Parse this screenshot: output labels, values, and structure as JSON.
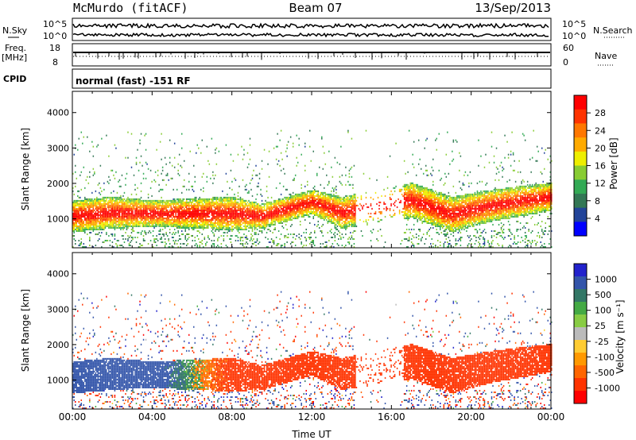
{
  "header": {
    "station": "McMurdo (fitACF)",
    "beam": "Beam 07",
    "date": "13/Sep/2013"
  },
  "side_labels": {
    "nsky": "N.Sky",
    "nsky_hi": "10^5",
    "nsky_lo": "10^0",
    "nsearch": "N.Search",
    "nsearch_hi": "10^5",
    "nsearch_lo": "10^0",
    "freq_line1": "Freq.",
    "freq_line2": "[MHz]",
    "freq_hi": "18",
    "freq_lo": "8",
    "nave": "Nave",
    "nave_hi": "60",
    "nave_lo": "0",
    "cpid": "CPID",
    "cpid_value": "normal (fast) -151 RF"
  },
  "chart_data": [
    {
      "type": "heatmap",
      "panel": "power",
      "ylabel": "Slant Range [km]",
      "ylim": [
        180,
        4600
      ],
      "yticks": [
        "1000",
        "2000",
        "3000",
        "4000"
      ],
      "xlim": [
        0,
        24
      ],
      "colorbar": {
        "label": "Power [dB]",
        "ticks": [
          "28",
          "24",
          "20",
          "16",
          "12",
          "8",
          "4"
        ],
        "colors": [
          "#ff0000",
          "#ff3300",
          "#ff7700",
          "#ffaa00",
          "#eeee00",
          "#88cc33",
          "#33aa55",
          "#337755",
          "#224499",
          "#0000ff"
        ]
      },
      "dominant_band_km": [
        {
          "t": 0.0,
          "low": 600,
          "high": 1500
        },
        {
          "t": 2.0,
          "low": 700,
          "high": 1600
        },
        {
          "t": 4.0,
          "low": 750,
          "high": 1500
        },
        {
          "t": 6.0,
          "low": 700,
          "high": 1550
        },
        {
          "t": 8.0,
          "low": 650,
          "high": 1600
        },
        {
          "t": 9.5,
          "low": 700,
          "high": 1400
        },
        {
          "t": 12.0,
          "low": 1100,
          "high": 1800
        },
        {
          "t": 13.5,
          "low": 700,
          "high": 1600
        },
        {
          "t": 17.0,
          "low": 1000,
          "high": 2000
        },
        {
          "t": 19.0,
          "low": 600,
          "high": 1600
        },
        {
          "t": 21.0,
          "low": 900,
          "high": 1800
        },
        {
          "t": 24.0,
          "low": 1200,
          "high": 2000
        }
      ]
    },
    {
      "type": "heatmap",
      "panel": "velocity",
      "ylabel": "Slant Range [km]",
      "ylim": [
        180,
        4600
      ],
      "yticks": [
        "1000",
        "2000",
        "3000",
        "4000"
      ],
      "xlabel": "Time UT",
      "xticks": [
        "00:00",
        "04:00",
        "08:00",
        "12:00",
        "16:00",
        "20:00",
        "00:00"
      ],
      "xlim": [
        0,
        24
      ],
      "colorbar": {
        "label": "Velocity [m s⁻¹]",
        "ticks": [
          "1000",
          "500",
          "100",
          "25",
          "-25",
          "-100",
          "-500",
          "-1000"
        ],
        "colors": [
          "#2222cc",
          "#3355aa",
          "#337766",
          "#44aa44",
          "#88cc44",
          "#bbbbbb",
          "#ffcc33",
          "#ff9900",
          "#ff6600",
          "#ff3300",
          "#ff0000"
        ]
      },
      "dominant_band_km": [
        {
          "t": 0.0,
          "low": 600,
          "high": 1500,
          "velocity": 300
        },
        {
          "t": 4.0,
          "low": 700,
          "high": 1600,
          "velocity": 250
        },
        {
          "t": 8.0,
          "low": 700,
          "high": 1500,
          "velocity": -200
        },
        {
          "t": 12.0,
          "low": 1000,
          "high": 1700,
          "velocity": -250
        },
        {
          "t": 17.0,
          "low": 900,
          "high": 2000,
          "velocity": -300
        },
        {
          "t": 20.0,
          "low": 900,
          "high": 1800,
          "velocity": -250
        },
        {
          "t": 24.0,
          "low": 1100,
          "high": 1900,
          "velocity": -200
        }
      ]
    }
  ]
}
